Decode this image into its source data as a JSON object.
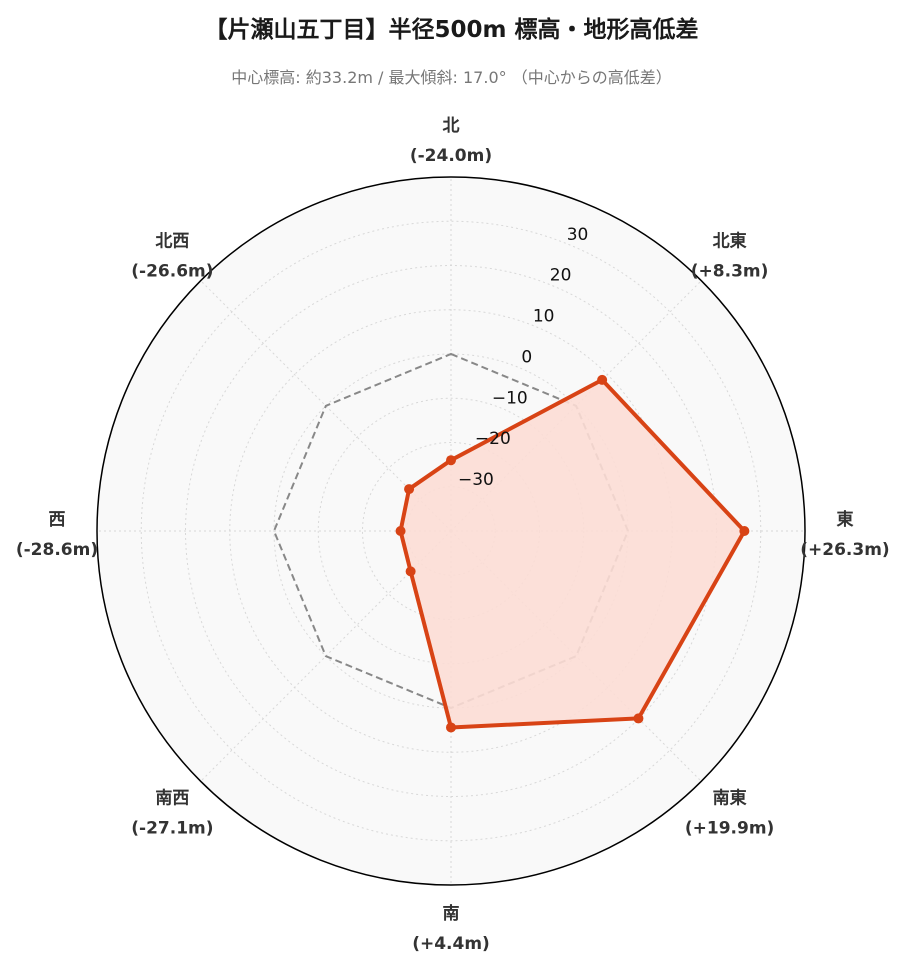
{
  "title": "【片瀬山五丁目】半径500m 標高・地形高低差",
  "subtitle": "中心標高: 約33.2m / 最大傾斜: 17.0° （中心からの高低差）",
  "chart_data": {
    "type": "radar",
    "categories": [
      "北",
      "北東",
      "東",
      "南東",
      "南",
      "南西",
      "西",
      "北西"
    ],
    "category_values_text": [
      "(-24.0m)",
      "(+8.3m)",
      "(+26.3m)",
      "(+19.9m)",
      "(+4.4m)",
      "(-27.1m)",
      "(-28.6m)",
      "(-26.6m)"
    ],
    "values": [
      -24.0,
      8.3,
      26.3,
      19.9,
      4.4,
      -27.1,
      -28.6,
      -26.6
    ],
    "reference_values": [
      0,
      0,
      0,
      0,
      0,
      0,
      0,
      0
    ],
    "r_ticks": [
      -30,
      -20,
      -10,
      0,
      10,
      20,
      30
    ],
    "r_tick_labels": [
      "−30",
      "−20",
      "−10",
      "0",
      "10",
      "20",
      "30"
    ],
    "rlim": [
      -40,
      40
    ],
    "grid": true,
    "colors": {
      "series_line": "#d84315",
      "series_fill": "#fcddd5",
      "reference_line": "#888888",
      "background": "#f9f9f9",
      "outline": "#000000",
      "grid": "#d8d8d8"
    }
  }
}
